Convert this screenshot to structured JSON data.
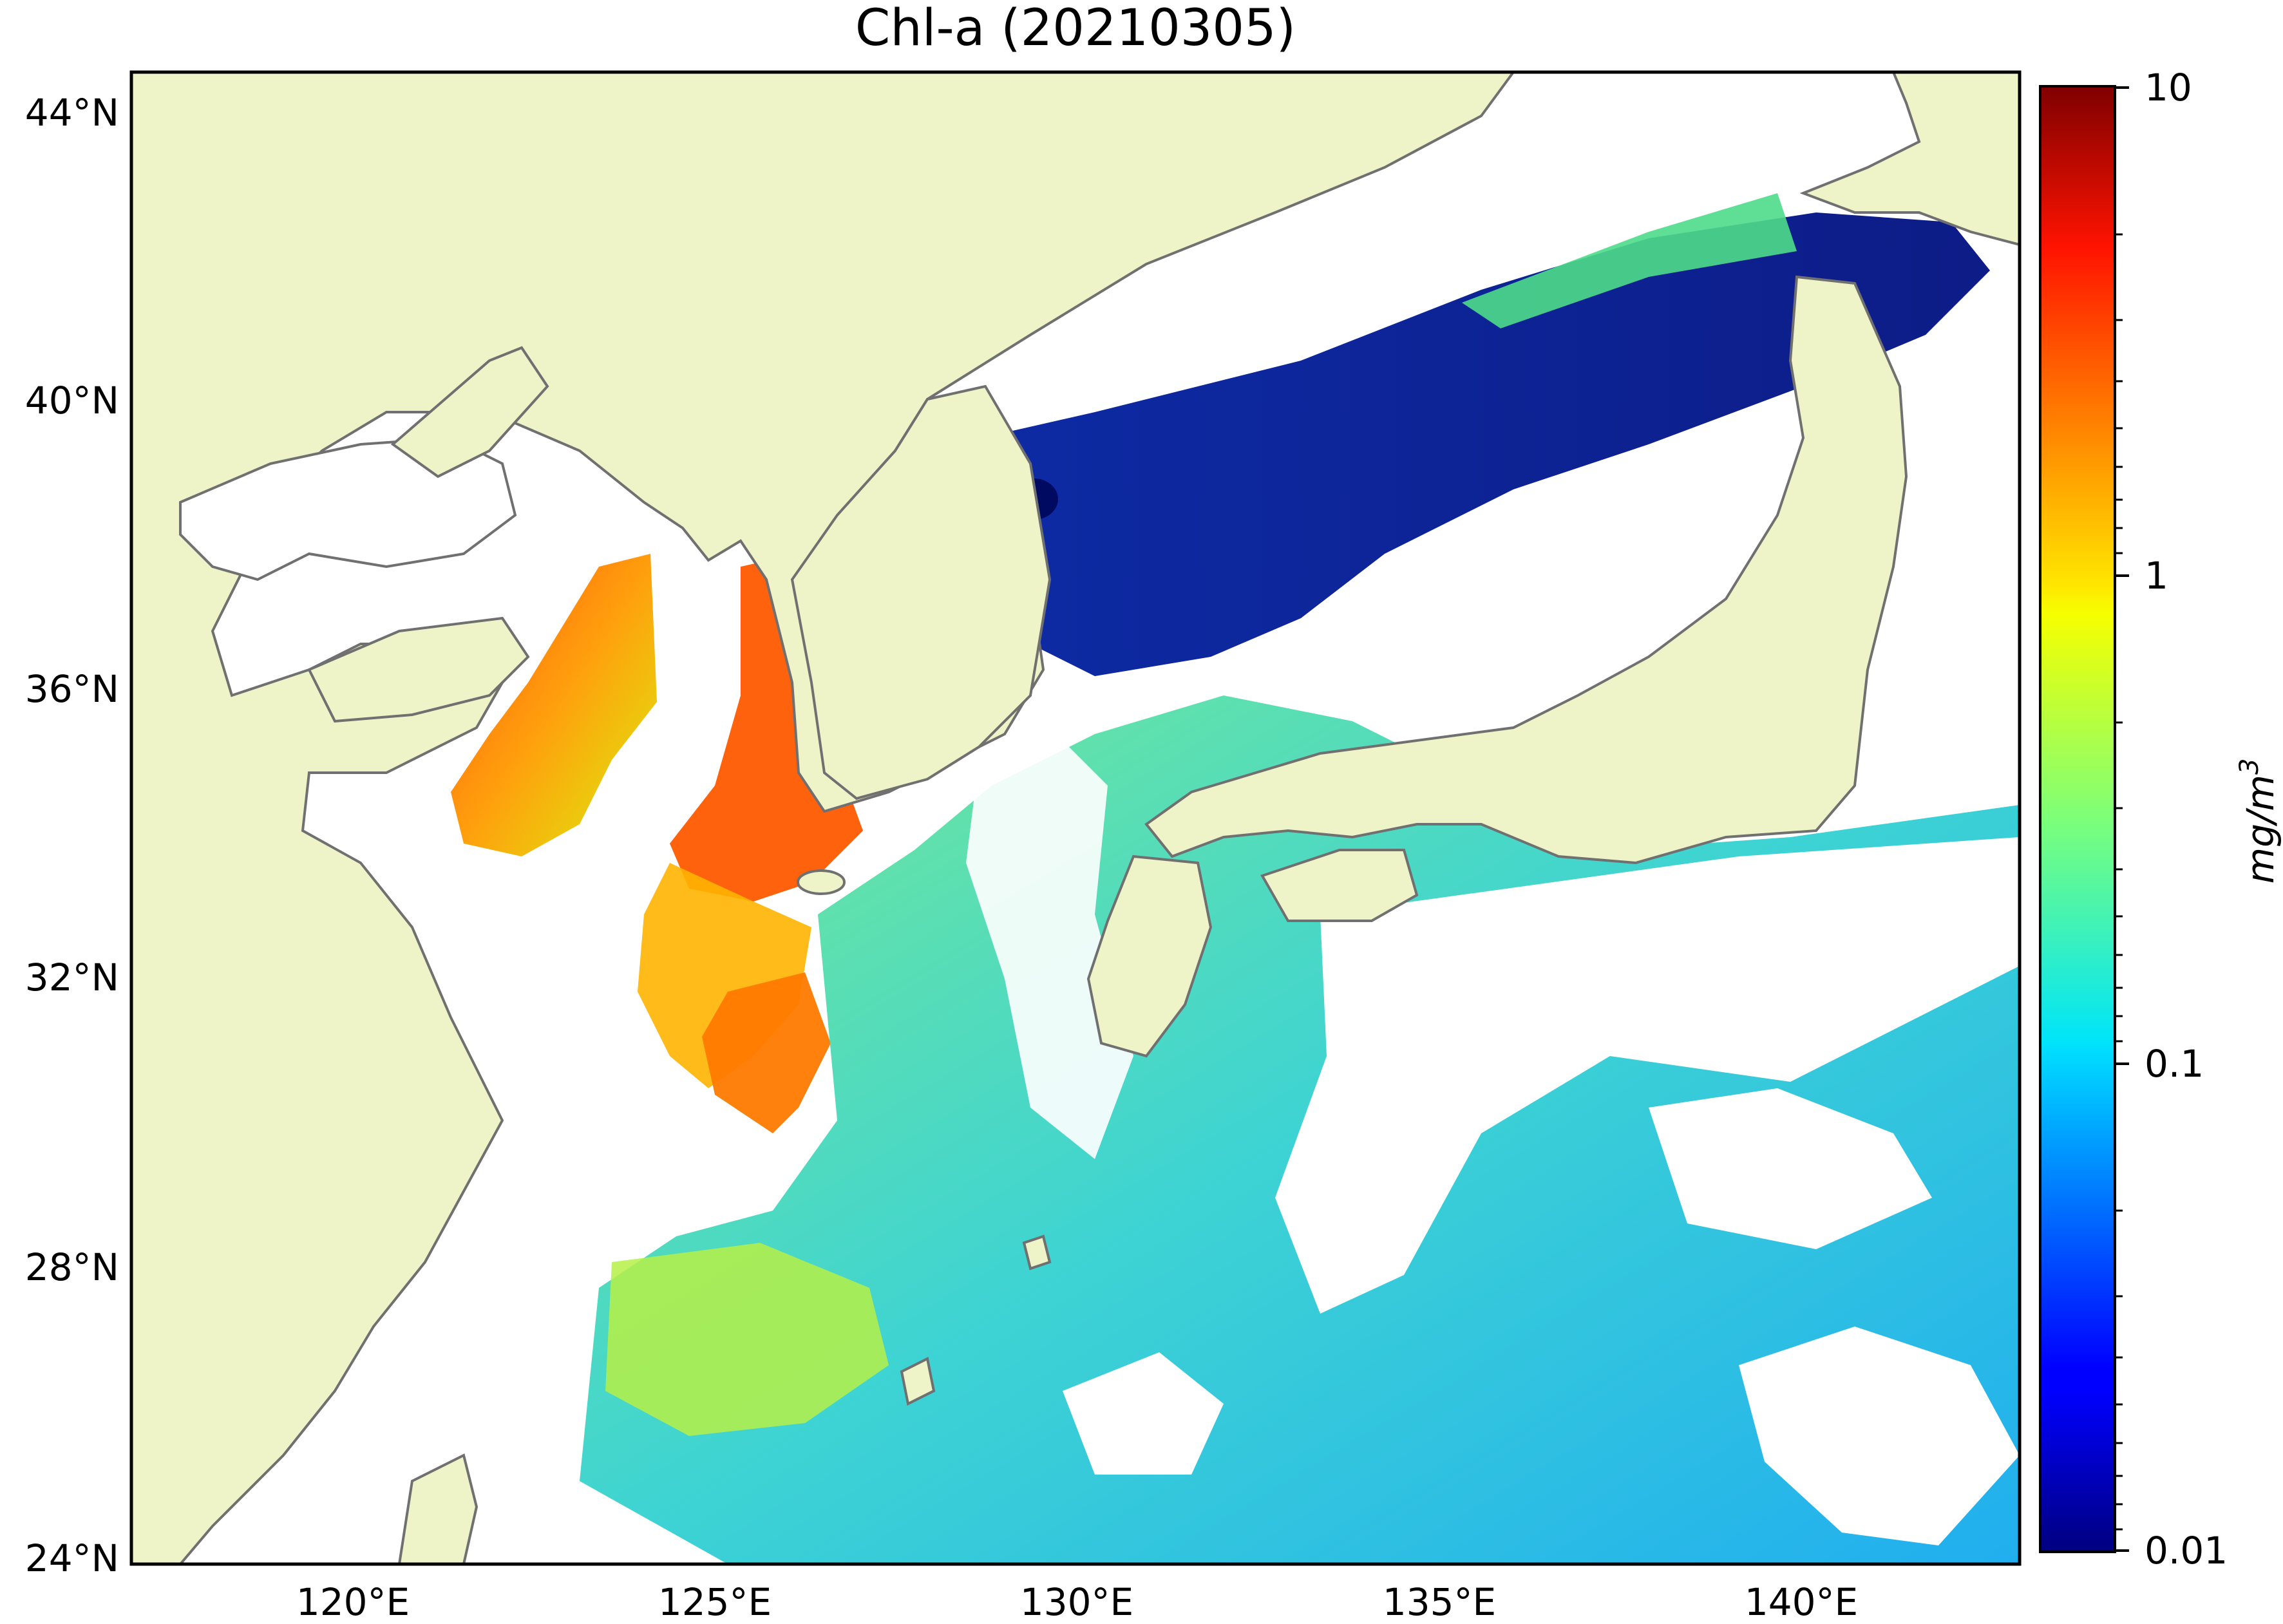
{
  "title": "Chl-a (20210305)",
  "map": {
    "lat_ticks": [
      "44°N",
      "40°N",
      "36°N",
      "32°N",
      "28°N",
      "24°N"
    ],
    "lon_ticks": [
      "120°E",
      "125°E",
      "130°E",
      "135°E",
      "140°E"
    ],
    "extent": {
      "lon": [
        116.9,
        143.1
      ],
      "lat": [
        24,
        44.5
      ]
    },
    "land_color": "#eff3c8",
    "coast_color": "#707070",
    "nodata_color": "#ffffff"
  },
  "colorbar": {
    "scale": "log",
    "vmin": 0.01,
    "vmax": 10,
    "tick_labels": [
      "10",
      "1",
      "0.1",
      "0.01"
    ],
    "label": "mg/m",
    "label_sup": "3",
    "colormap": "jet"
  }
}
